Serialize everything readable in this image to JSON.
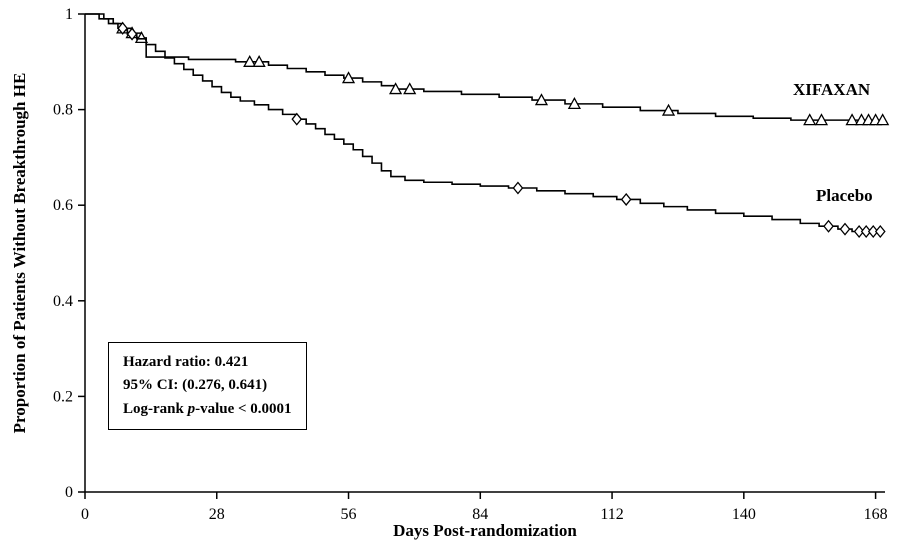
{
  "chart_data": {
    "type": "line",
    "subtype": "kaplan-meier-step",
    "title": "",
    "xlabel": "Days Post-randomization",
    "ylabel": "Proportion of Patients Without Breakthrough HE",
    "xlim": [
      0,
      170
    ],
    "ylim": [
      0,
      1
    ],
    "xticks": [
      0,
      28,
      56,
      84,
      112,
      140,
      168
    ],
    "yticks": [
      0,
      0.2,
      0.4,
      0.6,
      0.8,
      1
    ],
    "grid": false,
    "line_color": "#000000",
    "background": "#ffffff",
    "legend_position": "right-of-curves",
    "series": [
      {
        "name": "XIFAXAN",
        "marker": "triangle",
        "steps": [
          [
            0,
            1.0
          ],
          [
            4,
            0.99
          ],
          [
            6,
            0.98
          ],
          [
            8,
            0.97
          ],
          [
            10,
            0.96
          ],
          [
            12,
            0.95
          ],
          [
            13,
            0.91
          ],
          [
            22,
            0.905
          ],
          [
            32,
            0.9
          ],
          [
            39,
            0.893
          ],
          [
            43,
            0.886
          ],
          [
            47,
            0.879
          ],
          [
            51,
            0.872
          ],
          [
            55,
            0.866
          ],
          [
            59,
            0.858
          ],
          [
            63,
            0.85
          ],
          [
            66,
            0.843
          ],
          [
            72,
            0.838
          ],
          [
            80,
            0.832
          ],
          [
            88,
            0.826
          ],
          [
            95,
            0.82
          ],
          [
            102,
            0.812
          ],
          [
            110,
            0.805
          ],
          [
            118,
            0.798
          ],
          [
            126,
            0.792
          ],
          [
            134,
            0.786
          ],
          [
            142,
            0.782
          ],
          [
            150,
            0.778
          ],
          [
            169,
            0.778
          ]
        ],
        "censor_markers": [
          [
            8,
            0.97
          ],
          [
            10,
            0.96
          ],
          [
            12,
            0.95
          ],
          [
            35,
            0.9
          ],
          [
            37,
            0.9
          ],
          [
            56,
            0.866
          ],
          [
            66,
            0.843
          ],
          [
            69,
            0.843
          ],
          [
            97,
            0.82
          ],
          [
            104,
            0.812
          ],
          [
            124,
            0.798
          ],
          [
            154,
            0.778
          ],
          [
            156.5,
            0.778
          ],
          [
            163,
            0.778
          ],
          [
            165,
            0.778
          ],
          [
            166.5,
            0.778
          ],
          [
            168,
            0.778
          ],
          [
            169.5,
            0.778
          ]
        ]
      },
      {
        "name": "Placebo",
        "marker": "diamond",
        "steps": [
          [
            0,
            1.0
          ],
          [
            3,
            0.99
          ],
          [
            5,
            0.98
          ],
          [
            7,
            0.97
          ],
          [
            9,
            0.958
          ],
          [
            11,
            0.948
          ],
          [
            13,
            0.936
          ],
          [
            15,
            0.922
          ],
          [
            17,
            0.908
          ],
          [
            19,
            0.896
          ],
          [
            21,
            0.884
          ],
          [
            23,
            0.872
          ],
          [
            25,
            0.86
          ],
          [
            27,
            0.848
          ],
          [
            29,
            0.836
          ],
          [
            31,
            0.826
          ],
          [
            33,
            0.818
          ],
          [
            36,
            0.81
          ],
          [
            39,
            0.8
          ],
          [
            42,
            0.79
          ],
          [
            45,
            0.78
          ],
          [
            47,
            0.77
          ],
          [
            49,
            0.76
          ],
          [
            51,
            0.748
          ],
          [
            53,
            0.738
          ],
          [
            55,
            0.728
          ],
          [
            57,
            0.716
          ],
          [
            59,
            0.702
          ],
          [
            61,
            0.688
          ],
          [
            63,
            0.672
          ],
          [
            65,
            0.66
          ],
          [
            68,
            0.652
          ],
          [
            72,
            0.648
          ],
          [
            78,
            0.644
          ],
          [
            84,
            0.64
          ],
          [
            90,
            0.636
          ],
          [
            96,
            0.63
          ],
          [
            102,
            0.624
          ],
          [
            108,
            0.618
          ],
          [
            113,
            0.612
          ],
          [
            118,
            0.604
          ],
          [
            123,
            0.597
          ],
          [
            128,
            0.59
          ],
          [
            134,
            0.583
          ],
          [
            140,
            0.577
          ],
          [
            146,
            0.57
          ],
          [
            152,
            0.562
          ],
          [
            156,
            0.556
          ],
          [
            160,
            0.55
          ],
          [
            163,
            0.545
          ],
          [
            169,
            0.545
          ]
        ],
        "censor_markers": [
          [
            8,
            0.97
          ],
          [
            10,
            0.958
          ],
          [
            45,
            0.78
          ],
          [
            92,
            0.636
          ],
          [
            115,
            0.612
          ],
          [
            158,
            0.556
          ],
          [
            161.5,
            0.55
          ],
          [
            164.5,
            0.545
          ],
          [
            166,
            0.545
          ],
          [
            167.5,
            0.545
          ],
          [
            169,
            0.545
          ]
        ]
      }
    ],
    "annotation": {
      "line1": "Hazard ratio: 0.421",
      "line2": "95% CI: (0.276, 0.641)",
      "line3_pre": "Log-rank ",
      "line3_italic": "p",
      "line3_post": "-value < 0.0001"
    }
  }
}
